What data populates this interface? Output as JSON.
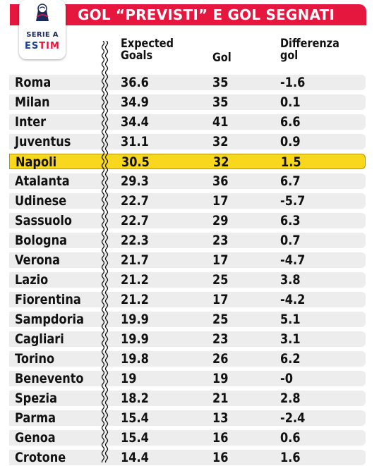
{
  "header": {
    "title": "GOL “PREVISTI” E GOL SEGNATI",
    "logo": {
      "league_name": "SERIE A",
      "sponsor_prefix": "ES",
      "sponsor_brand": "TIM",
      "icon": "serie-a-logo"
    }
  },
  "columns": {
    "expected": "Expected\nGoals",
    "gol": "Gol",
    "diff": "Differenza\ngol"
  },
  "rows": [
    {
      "team": "Roma",
      "xg": "36.6",
      "gol": "35",
      "diff": "-1.6"
    },
    {
      "team": "Milan",
      "xg": "34.9",
      "gol": "35",
      "diff": "0.1"
    },
    {
      "team": "Inter",
      "xg": "34.4",
      "gol": "41",
      "diff": "6.6"
    },
    {
      "team": "Juventus",
      "xg": "31.1",
      "gol": "32",
      "diff": "0.9"
    },
    {
      "team": "Napoli",
      "xg": "30.5",
      "gol": "32",
      "diff": "1.5"
    },
    {
      "team": "Atalanta",
      "xg": "29.3",
      "gol": "36",
      "diff": "6.7"
    },
    {
      "team": "Udinese",
      "xg": "22.7",
      "gol": "17",
      "diff": "-5.7"
    },
    {
      "team": "Sassuolo",
      "xg": "22.7",
      "gol": "29",
      "diff": "6.3"
    },
    {
      "team": "Bologna",
      "xg": "22.3",
      "gol": "23",
      "diff": "0.7"
    },
    {
      "team": "Verona",
      "xg": "21.7",
      "gol": "17",
      "diff": "-4.7"
    },
    {
      "team": "Lazio",
      "xg": "21.2",
      "gol": "25",
      "diff": "3.8"
    },
    {
      "team": "Fiorentina",
      "xg": "21.2",
      "gol": "17",
      "diff": "-4.2"
    },
    {
      "team": "Sampdoria",
      "xg": "19.9",
      "gol": "25",
      "diff": "5.1"
    },
    {
      "team": "Cagliari",
      "xg": "19.9",
      "gol": "23",
      "diff": "3.1"
    },
    {
      "team": "Torino",
      "xg": "19.8",
      "gol": "26",
      "diff": "6.2"
    },
    {
      "team": "Benevento",
      "xg": "19",
      "gol": "19",
      "diff": "-0"
    },
    {
      "team": "Spezia",
      "xg": "18.2",
      "gol": "21",
      "diff": "2.8"
    },
    {
      "team": "Parma",
      "xg": "15.4",
      "gol": "13",
      "diff": "-2.4"
    },
    {
      "team": "Genoa",
      "xg": "15.4",
      "gol": "16",
      "diff": "0.6"
    },
    {
      "team": "Crotone",
      "xg": "14.4",
      "gol": "16",
      "diff": "1.6"
    }
  ],
  "highlight_team": "Napoli",
  "colors": {
    "banner": "#e5173f",
    "row": "#ededed",
    "highlight": "#f9d71c",
    "text": "#111111"
  }
}
